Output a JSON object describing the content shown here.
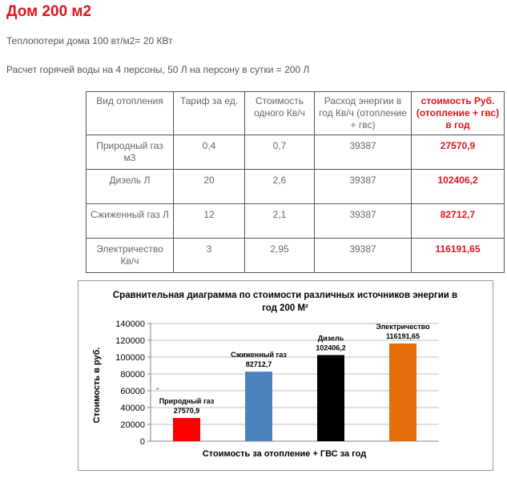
{
  "page": {
    "title": "Дом 200 м2",
    "line1": "Теплопотери дома 100 вт/м2= 20 КВт",
    "line2": "Расчет горячей воды на 4 персоны, 50 Л на персону в сутки = 200 Л"
  },
  "table": {
    "headers": [
      "Вид отопления",
      "Тариф за ед.",
      "Стоимость одного Кв/ч",
      "Расход энергии в год Кв/ч (отопление + гвс)",
      "стоимость Руб. (отопление + гвс) в год"
    ],
    "rows": [
      [
        "Природный газ м3",
        "0,4",
        "0,7",
        "39387",
        "27570,9"
      ],
      [
        "Дизель Л",
        "20",
        "2,6",
        "39387",
        "102406,2"
      ],
      [
        "Сжиженный газ Л",
        "12",
        "2,1",
        "39387",
        "82712,7"
      ],
      [
        "Электричество Кв/ч",
        "3",
        "2,95",
        "39387",
        "116191,65"
      ]
    ]
  },
  "chart_data": {
    "type": "bar",
    "title": "Сравнительная диаграмма по стоимости различных источников энергии в год 200 М²",
    "title_line1": "Сравнительная диаграмма по стоимости различных источников энергии в",
    "title_line2": "год 200 М²",
    "xlabel": "Стоимость за отопление + ГВС за год",
    "ylabel": "Стоимость в руб.",
    "ylim": [
      0,
      140000
    ],
    "yticks": [
      0,
      20000,
      40000,
      60000,
      80000,
      100000,
      120000,
      140000
    ],
    "ytick_labels": [
      "0",
      "20000",
      "40000",
      "60000",
      "80000",
      "100000",
      "120000",
      "140000"
    ],
    "grid": true,
    "legend": "none",
    "stray_mark": "\"",
    "categories": [
      "Природный газ",
      "Сжиженный газ",
      "Дизель",
      "Электричество"
    ],
    "values": [
      27570.9,
      82712.7,
      102406.2,
      116191.65
    ],
    "value_labels": [
      "27570,9",
      "82712,7",
      "102406,2",
      "116191,65"
    ],
    "colors": [
      "#ff0000",
      "#4f81bd",
      "#000000",
      "#e46c0a"
    ]
  }
}
